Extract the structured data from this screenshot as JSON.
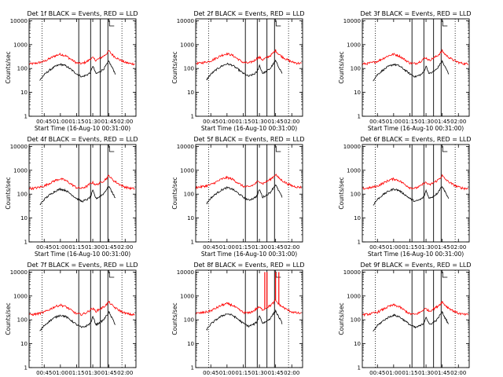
{
  "chart_data": [
    {
      "type": "line",
      "title": "Det 1f BLACK = Events, RED = LLD"
    },
    {
      "type": "line",
      "title": "Det 2f BLACK = Events, RED = LLD"
    },
    {
      "type": "line",
      "title": "Det 3f BLACK = Events, RED = LLD"
    },
    {
      "type": "line",
      "title": "Det 4f BLACK = Events, RED = LLD"
    },
    {
      "type": "line",
      "title": "Det 5f BLACK = Events, RED = LLD"
    },
    {
      "type": "line",
      "title": "Det 6f BLACK = Events, RED = LLD"
    },
    {
      "type": "line",
      "title": "Det 7f BLACK = Events, RED = LLD"
    },
    {
      "type": "line",
      "title": "Det 8f BLACK = Events, RED = LLD",
      "spikes": [
        {
          "x": "01:35",
          "y": 10000
        },
        {
          "x": "01:37",
          "y": 10000
        },
        {
          "x": "01:45",
          "y": 10000
        },
        {
          "x": "01:48",
          "y": 10000
        }
      ]
    },
    {
      "type": "line",
      "title": "Det 9f BLACK = Events, RED = LLD"
    }
  ],
  "shared": {
    "xlabel": "Start Time (16-Aug-10 00:31:00)",
    "ylabel": "Counts/sec",
    "x_ticks": [
      "00:45",
      "01:00",
      "01:15",
      "01:30",
      "01:45",
      "02:00"
    ],
    "y_ticks": [
      "1",
      "10",
      "100",
      "1000",
      "10000"
    ],
    "ylim": [
      1,
      12000
    ],
    "xlim": [
      "00:31",
      "02:10"
    ],
    "y_scale": "log",
    "series": [
      {
        "name": "Events",
        "color": "#000000"
      },
      {
        "name": "LLD",
        "color": "#ff0000"
      }
    ],
    "solid_markers": [
      "01:17",
      "01:28",
      "01:37",
      "01:44"
    ],
    "dotted_markers": [
      "00:43",
      "01:57"
    ],
    "events_curve": {
      "x": [
        "00:41",
        "00:45",
        "00:50",
        "00:55",
        "01:00",
        "01:05",
        "01:10",
        "01:15",
        "01:20",
        "01:25",
        "01:28",
        "01:30",
        "01:33",
        "01:36",
        "01:40",
        "01:43",
        "01:45",
        "01:47",
        "01:49",
        "01:51"
      ],
      "y": [
        32,
        55,
        85,
        120,
        150,
        130,
        90,
        60,
        45,
        55,
        70,
        130,
        60,
        70,
        95,
        150,
        200,
        130,
        90,
        60
      ]
    },
    "lld_curve": {
      "x": [
        "00:31",
        "00:35",
        "00:40",
        "00:45",
        "00:50",
        "00:55",
        "01:00",
        "01:05",
        "01:10",
        "01:15",
        "01:20",
        "01:25",
        "01:28",
        "01:30",
        "01:33",
        "01:36",
        "01:40",
        "01:43",
        "01:45",
        "01:47",
        "01:50",
        "01:55",
        "02:00",
        "02:05",
        "02:09"
      ],
      "y": [
        155,
        160,
        175,
        200,
        260,
        340,
        400,
        340,
        240,
        170,
        160,
        200,
        260,
        280,
        220,
        260,
        330,
        430,
        550,
        420,
        320,
        230,
        180,
        160,
        155
      ]
    }
  }
}
